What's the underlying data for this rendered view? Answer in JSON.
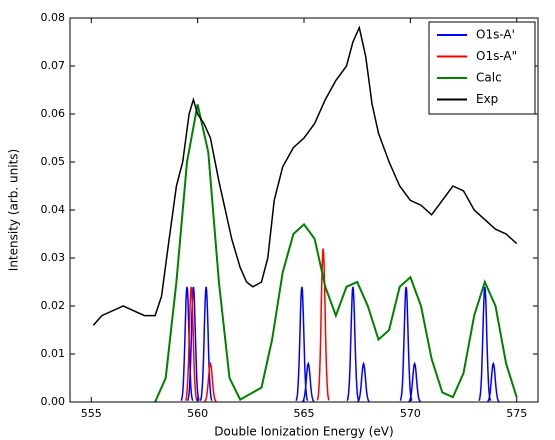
{
  "chart_data": {
    "type": "line",
    "x_label": "Double Ionization Energy (eV)",
    "y_label": "Intensity (arb. units)",
    "xlim": [
      554,
      576
    ],
    "ylim": [
      0,
      0.08
    ],
    "xticks": [
      555,
      560,
      565,
      570,
      575
    ],
    "yticks": [
      {
        "value": 0,
        "label": "0.00"
      },
      {
        "value": 0.01,
        "label": "0.01"
      },
      {
        "value": 0.02,
        "label": "0.02"
      },
      {
        "value": 0.03,
        "label": "0.03"
      },
      {
        "value": 0.04,
        "label": "0.04"
      },
      {
        "value": 0.05,
        "label": "0.05"
      },
      {
        "value": 0.06,
        "label": "0.06"
      },
      {
        "value": 0.07,
        "label": "0.07"
      },
      {
        "value": 0.08,
        "label": "0.08"
      }
    ],
    "legend": "upper right",
    "series": [
      {
        "name": "O1s-A'",
        "color": "#0000ff",
        "style": "sticks",
        "x": [
          559.5,
          559.8,
          560.4,
          564.9,
          565.2,
          567.3,
          567.8,
          569.8,
          570.2,
          573.5,
          573.9
        ],
        "values": [
          0.024,
          0.024,
          0.024,
          0.024,
          0.008,
          0.024,
          0.008,
          0.024,
          0.008,
          0.024,
          0.008
        ]
      },
      {
        "name": "O1s-A\"",
        "color": "#ff0000",
        "style": "sticks",
        "x": [
          559.7,
          560.6,
          565.9
        ],
        "values": [
          0.024,
          0.008,
          0.032
        ]
      },
      {
        "name": "Calc",
        "color": "#008000",
        "style": "line",
        "x": [
          558,
          558.5,
          559,
          559.5,
          560,
          560.5,
          561,
          561.5,
          562,
          563,
          563.5,
          564,
          564.5,
          565,
          565.5,
          566,
          566.5,
          567,
          567.5,
          568,
          568.5,
          569,
          569.5,
          570,
          570.5,
          571,
          571.5,
          572,
          572.5,
          573,
          573.5,
          574,
          574.5,
          575
        ],
        "values": [
          0,
          0.005,
          0.025,
          0.05,
          0.062,
          0.052,
          0.025,
          0.005,
          0.0005,
          0.003,
          0.013,
          0.027,
          0.035,
          0.037,
          0.034,
          0.024,
          0.018,
          0.024,
          0.025,
          0.02,
          0.013,
          0.015,
          0.024,
          0.026,
          0.02,
          0.009,
          0.002,
          0.001,
          0.006,
          0.018,
          0.025,
          0.02,
          0.008,
          0.001
        ]
      },
      {
        "name": "Exp",
        "color": "#000000",
        "style": "line",
        "x": [
          555.1,
          555.5,
          556,
          556.5,
          557,
          557.5,
          558,
          558.3,
          558.6,
          559,
          559.3,
          559.6,
          559.8,
          560,
          560.3,
          560.6,
          561,
          561.3,
          561.6,
          562,
          562.3,
          562.6,
          563,
          563.3,
          563.6,
          564,
          564.5,
          565,
          565.5,
          566,
          566.5,
          567,
          567.3,
          567.6,
          567.9,
          568.2,
          568.5,
          569,
          569.5,
          570,
          570.5,
          571,
          571.5,
          572,
          572.5,
          573,
          573.5,
          574,
          574.5,
          575
        ],
        "values": [
          0.016,
          0.018,
          0.019,
          0.02,
          0.019,
          0.018,
          0.018,
          0.022,
          0.032,
          0.045,
          0.05,
          0.06,
          0.063,
          0.06,
          0.058,
          0.055,
          0.046,
          0.04,
          0.034,
          0.028,
          0.025,
          0.024,
          0.025,
          0.03,
          0.042,
          0.049,
          0.053,
          0.055,
          0.058,
          0.063,
          0.067,
          0.07,
          0.075,
          0.078,
          0.072,
          0.062,
          0.056,
          0.05,
          0.045,
          0.042,
          0.041,
          0.039,
          0.042,
          0.045,
          0.044,
          0.04,
          0.038,
          0.036,
          0.035,
          0.033
        ]
      }
    ]
  }
}
